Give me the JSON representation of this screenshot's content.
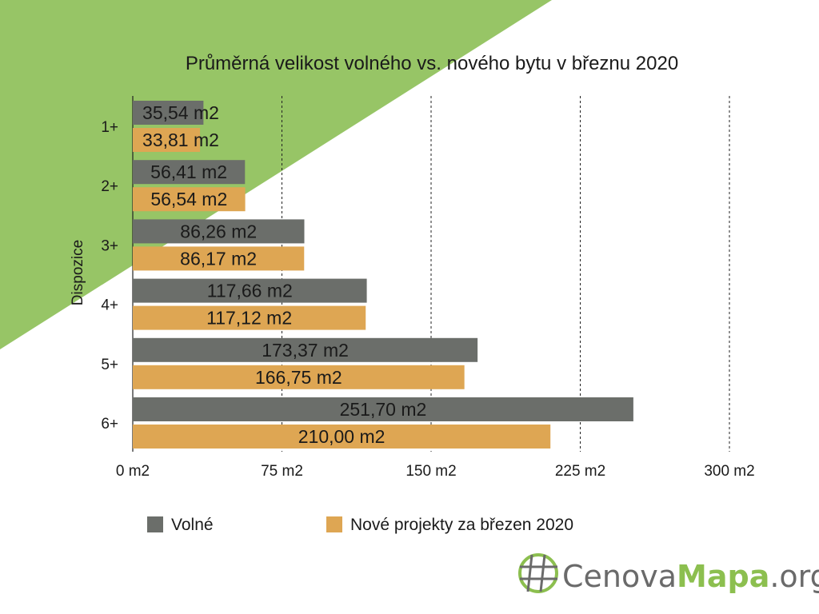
{
  "colors": {
    "background": "#ffffff",
    "accent_green": "#97c566",
    "series_volne": "#6b6e6a",
    "series_nove": "#dea653",
    "logo_gray": "#6a6a6a",
    "logo_green": "#8cbf4f"
  },
  "chart_data": {
    "type": "bar",
    "orientation": "horizontal",
    "title": "Průměrná velikost volného vs. nového bytu v březnu 2020",
    "ylabel": "Dispozice",
    "xlabel": "",
    "categories": [
      "1+",
      "2+",
      "3+",
      "4+",
      "5+",
      "6+"
    ],
    "series": [
      {
        "name": "Volné",
        "values": [
          35.54,
          56.41,
          86.26,
          117.66,
          173.37,
          251.7
        ],
        "labels": [
          "35,54 m2",
          "56,41 m2",
          "86,26 m2",
          "117,66 m2",
          "173,37 m2",
          "251,70 m2"
        ]
      },
      {
        "name": "Nové projekty za březen 2020",
        "values": [
          33.81,
          56.54,
          86.17,
          117.12,
          166.75,
          210.0
        ],
        "labels": [
          "33,81 m2",
          "56,54 m2",
          "86,17 m2",
          "117,12 m2",
          "166,75 m2",
          "210,00 m2"
        ]
      }
    ],
    "xlim": [
      0,
      300
    ],
    "xticks": [
      0,
      75,
      150,
      225,
      300
    ],
    "xtick_labels": [
      "0  m2",
      "75  m2",
      "150  m2",
      "225  m2",
      "300  m2"
    ],
    "grid": "vertical-dashed",
    "legend_position": "bottom"
  },
  "logo": {
    "text_regular": "Cenova",
    "text_bold": "Mapa",
    "text_suffix": ".org",
    "icon": "globe-grid-icon"
  }
}
